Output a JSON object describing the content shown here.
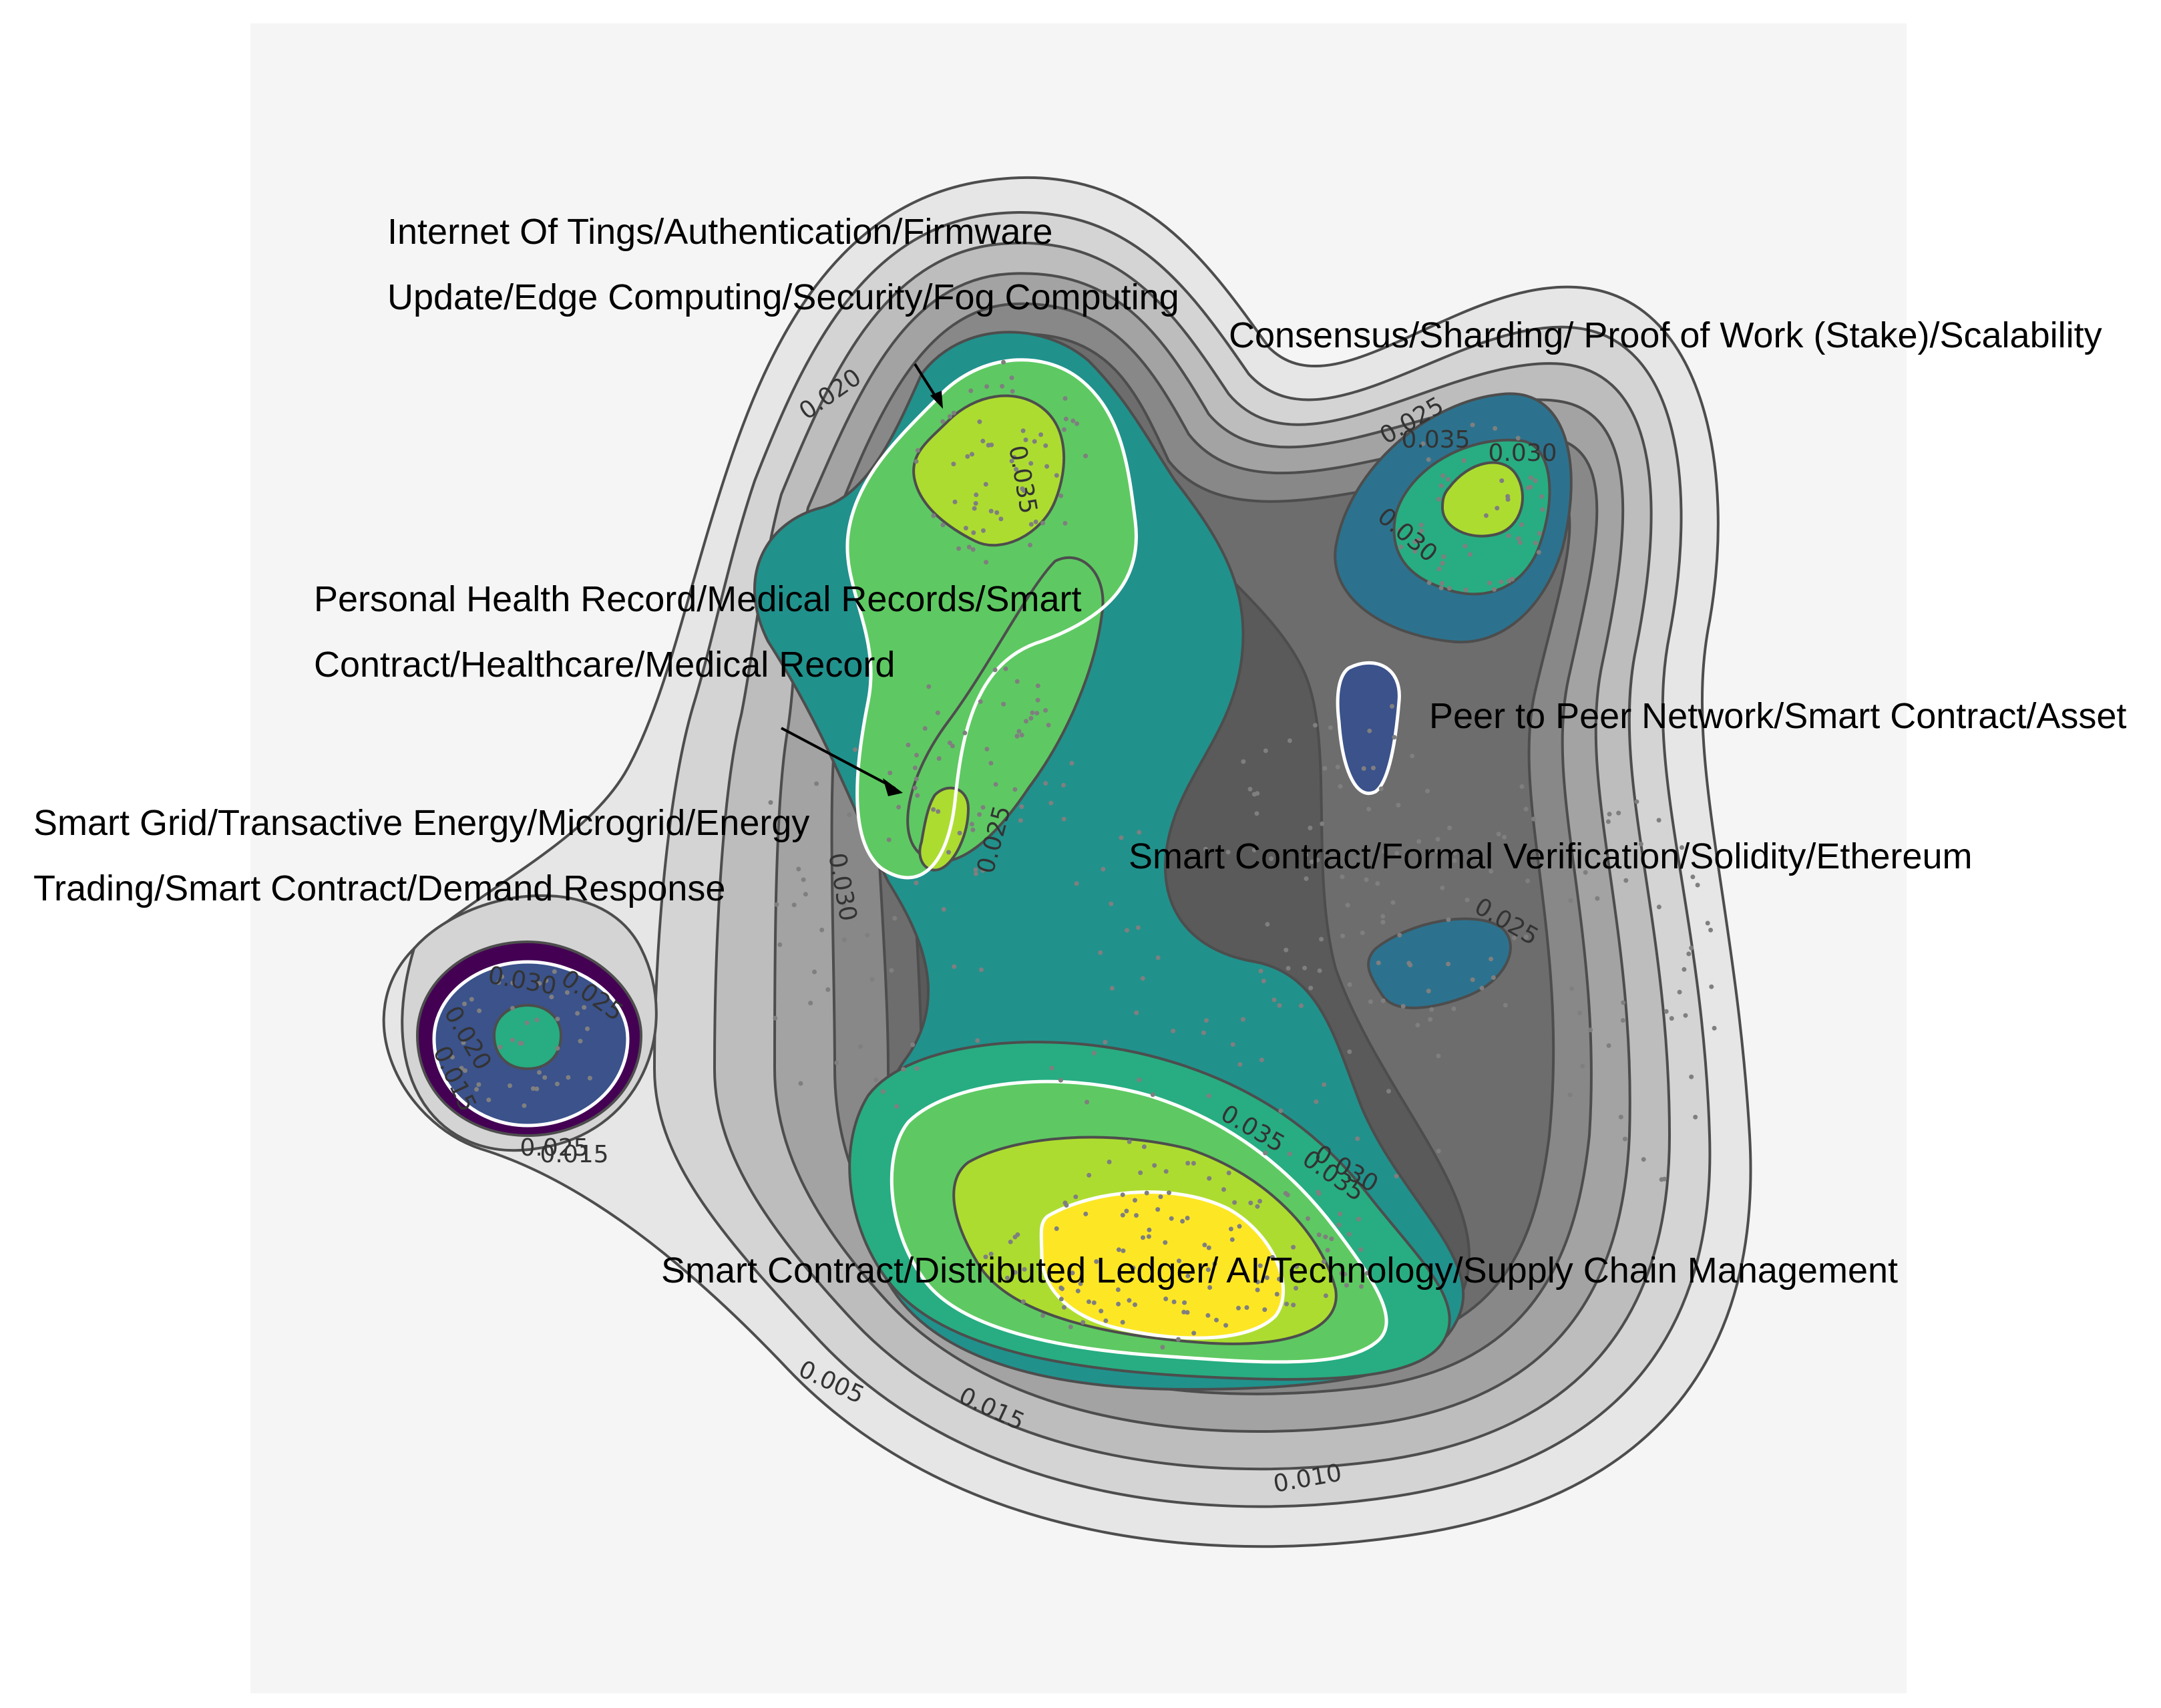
{
  "chart_data": {
    "type": "contour-density",
    "title": "",
    "xlabel": "",
    "ylabel": "",
    "palette": {
      "outer_grays": [
        "#e6e6e6",
        "#d4d4d4",
        "#bdbdbd",
        "#a3a3a3",
        "#888888",
        "#6d6d6d",
        "#5a5a5a"
      ],
      "viridis": [
        "#440154",
        "#3b528b",
        "#2c728e",
        "#21918c",
        "#27ad81",
        "#5ec962",
        "#addc30",
        "#fde725"
      ],
      "plot_background": "#f5f5f5"
    },
    "contour_levels": [
      0.005,
      0.01,
      0.015,
      0.02,
      0.025,
      0.03,
      0.035
    ],
    "contour_labels": [
      "0.005",
      "0.010",
      "0.015",
      "0.020",
      "0.025",
      "0.030",
      "0.035",
      "0.035",
      "0.035",
      "0.030",
      "0.025",
      "0.025",
      "0.030",
      "0.025",
      "0.030",
      "0.020",
      "0.015",
      "0.025",
      "0.035",
      "0.030",
      "0.015"
    ],
    "topics": [
      {
        "line1": "Internet Of Tings/Authentication/Firmware",
        "line2": "Update/Edge Computing/Security/Fog Computing",
        "peak_density": 0.036
      },
      {
        "line1": "Consensus/Sharding/ Proof of Work (Stake)/Scalability",
        "line2": "",
        "peak_density": 0.036
      },
      {
        "line1": "Personal Health Record/Medical Records/Smart",
        "line2": "Contract/Healthcare/Medical Record",
        "peak_density": 0.035
      },
      {
        "line1": "Peer to Peer Network/Smart Contract/Asset",
        "line2": "",
        "peak_density": 0.026
      },
      {
        "line1": "Smart Grid/Transactive Energy/Microgrid/Energy",
        "line2": "Trading/Smart Contract/Demand Response",
        "peak_density": 0.031
      },
      {
        "line1": "Smart Contract/Formal Verification/Solidity/Ethereum",
        "line2": "",
        "peak_density": 0.025
      },
      {
        "line1": "Smart Contract/Distributed Ledger/ AI/Technology/Supply Chain Management",
        "line2": "",
        "peak_density": 0.04
      }
    ]
  }
}
